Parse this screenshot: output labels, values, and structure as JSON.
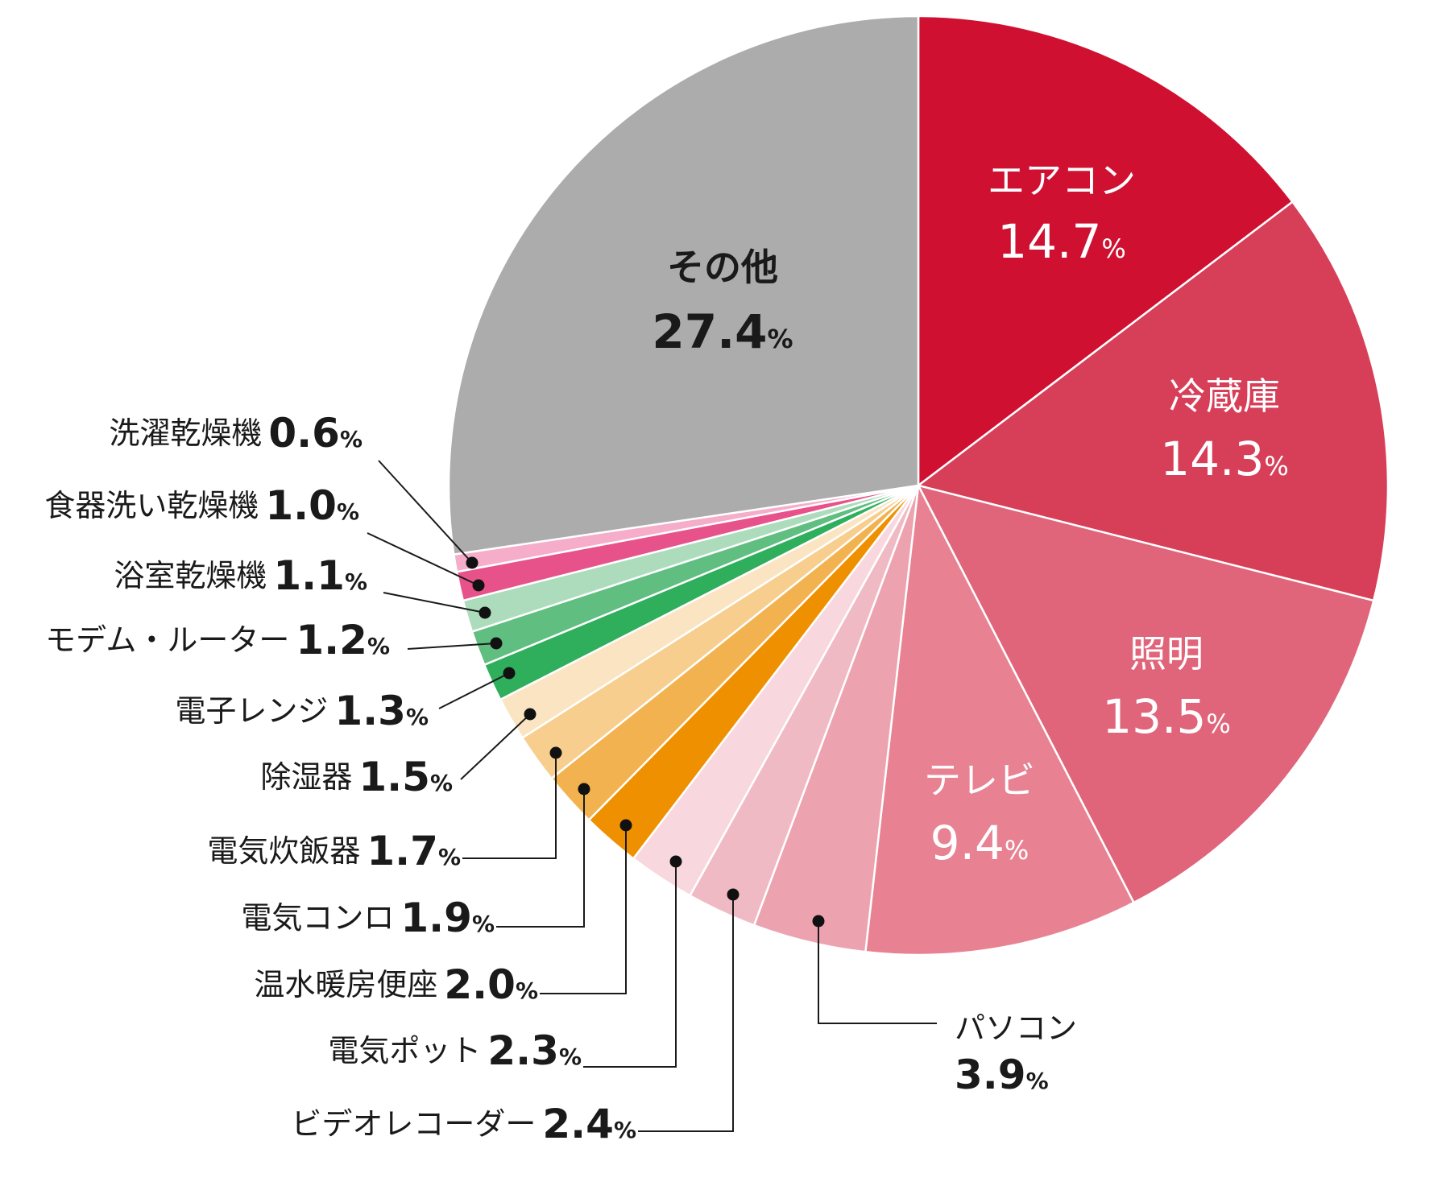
{
  "chart_data": {
    "type": "pie",
    "unit": "%",
    "slices": [
      {
        "label": "エアコン",
        "value": 14.7,
        "value_text": "14.7",
        "color": "#cf1031"
      },
      {
        "label": "冷蔵庫",
        "value": 14.3,
        "value_text": "14.3",
        "color": "#d73f59"
      },
      {
        "label": "照明",
        "value": 13.5,
        "value_text": "13.5",
        "color": "#e0657a"
      },
      {
        "label": "テレビ",
        "value": 9.4,
        "value_text": "9.4",
        "color": "#e88293"
      },
      {
        "label": "パソコン",
        "value": 3.9,
        "value_text": "3.9",
        "color": "#eca3af"
      },
      {
        "label": "ビデオレコーダー",
        "value": 2.4,
        "value_text": "2.4",
        "color": "#f0bac4"
      },
      {
        "label": "電気ポット",
        "value": 2.3,
        "value_text": "2.3",
        "color": "#f8d8de"
      },
      {
        "label": "温水暖房便座",
        "value": 2.0,
        "value_text": "2.0",
        "color": "#ef9000"
      },
      {
        "label": "電気コンロ",
        "value": 1.9,
        "value_text": "1.9",
        "color": "#f3b250"
      },
      {
        "label": "電気炊飯器",
        "value": 1.7,
        "value_text": "1.7",
        "color": "#f7ce8d"
      },
      {
        "label": "除湿器",
        "value": 1.5,
        "value_text": "1.5",
        "color": "#fae4c2"
      },
      {
        "label": "電子レンジ",
        "value": 1.3,
        "value_text": "1.3",
        "color": "#2fae5c"
      },
      {
        "label": "モデム・ルーター",
        "value": 1.2,
        "value_text": "1.2",
        "color": "#5fbe80"
      },
      {
        "label": "浴室乾燥機",
        "value": 1.1,
        "value_text": "1.1",
        "color": "#acdcbc"
      },
      {
        "label": "食器洗い乾燥機",
        "value": 1.0,
        "value_text": "1.0",
        "color": "#e8528a"
      },
      {
        "label": "洗濯乾燥機",
        "value": 0.6,
        "value_text": "0.6",
        "color": "#f5adc9"
      },
      {
        "label": "その他",
        "value": 27.4,
        "value_text": "27.4",
        "color": "#acacac"
      }
    ]
  }
}
